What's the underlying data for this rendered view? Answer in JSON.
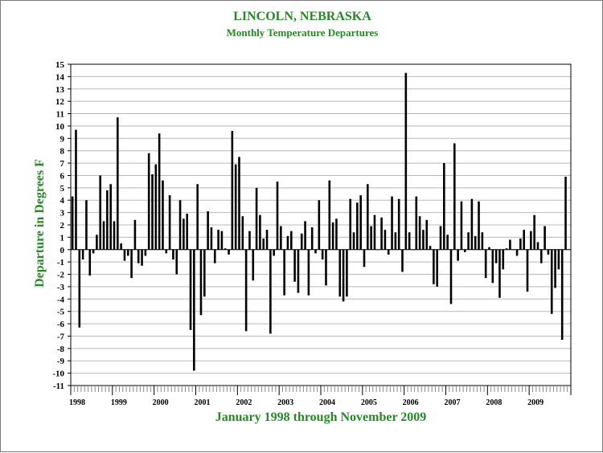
{
  "title": "LINCOLN, NEBRASKA",
  "subtitle": "Monthly Temperature Departures",
  "colors": {
    "title": "#228b22",
    "bars": "#000000",
    "grid": "#b8b8b8",
    "axis": "#000000",
    "background": "#ffffff"
  },
  "chart_data": {
    "type": "bar",
    "title": "LINCOLN, NEBRASKA",
    "subtitle": "Monthly Temperature Departures",
    "xlabel": "January 1998 through November 2009",
    "ylabel": "Departure in Degrees F",
    "ylim": [
      -11,
      15
    ],
    "yticks": [
      15,
      14,
      13,
      12,
      11,
      10,
      9,
      8,
      7,
      6,
      5,
      4,
      3,
      2,
      1,
      0,
      -1,
      -2,
      -3,
      -4,
      -5,
      -6,
      -7,
      -8,
      -9,
      -10,
      -11
    ],
    "year_labels": [
      "1998",
      "1999",
      "2000",
      "2001",
      "2002",
      "2003",
      "2004",
      "2005",
      "2006",
      "2007",
      "2008",
      "2009"
    ],
    "grid": "horizontal",
    "legend": "none",
    "start_month": "1998-01",
    "values": [
      4.3,
      9.7,
      -6.3,
      -0.8,
      4.0,
      -2.1,
      -0.3,
      1.2,
      6.0,
      2.3,
      4.8,
      5.3,
      2.3,
      10.7,
      0.5,
      -0.9,
      -0.5,
      -2.3,
      2.4,
      -1.1,
      -1.3,
      -0.5,
      7.8,
      6.1,
      6.9,
      9.4,
      5.6,
      -0.3,
      4.4,
      -0.8,
      -2.0,
      4.0,
      2.5,
      2.9,
      -6.5,
      -9.8,
      5.3,
      -5.3,
      -3.8,
      3.1,
      1.8,
      -1.1,
      1.6,
      1.5,
      0.1,
      -0.4,
      9.6,
      6.9,
      7.5,
      2.7,
      -6.6,
      1.5,
      -2.5,
      5.0,
      2.8,
      0.9,
      1.6,
      -6.8,
      -0.5,
      5.5,
      1.9,
      -3.7,
      1.1,
      1.5,
      -2.6,
      -3.5,
      1.3,
      2.3,
      -3.7,
      1.8,
      -0.3,
      4.0,
      -0.8,
      -2.9,
      5.6,
      2.2,
      2.5,
      -3.8,
      -4.2,
      -3.8,
      4.1,
      1.4,
      3.8,
      4.4,
      -1.4,
      5.3,
      1.9,
      2.8,
      0.0,
      2.6,
      1.6,
      -0.4,
      4.3,
      1.4,
      4.1,
      -1.8,
      14.3,
      1.4,
      0.0,
      4.3,
      2.7,
      1.6,
      2.4,
      0.3,
      -2.8,
      -3.0,
      1.9,
      7.0,
      1.2,
      -4.4,
      8.6,
      -0.9,
      3.9,
      -0.2,
      1.4,
      4.1,
      1.1,
      3.9,
      1.4,
      -2.3,
      0.2,
      -2.7,
      -1.1,
      -3.9,
      -1.6,
      0.1,
      0.8,
      0.0,
      -0.5,
      0.9,
      1.6,
      -3.4,
      1.5,
      2.8,
      0.6,
      -1.1,
      1.9,
      -0.4,
      -5.2,
      -3.1,
      -1.6,
      -7.3,
      5.9
    ]
  }
}
